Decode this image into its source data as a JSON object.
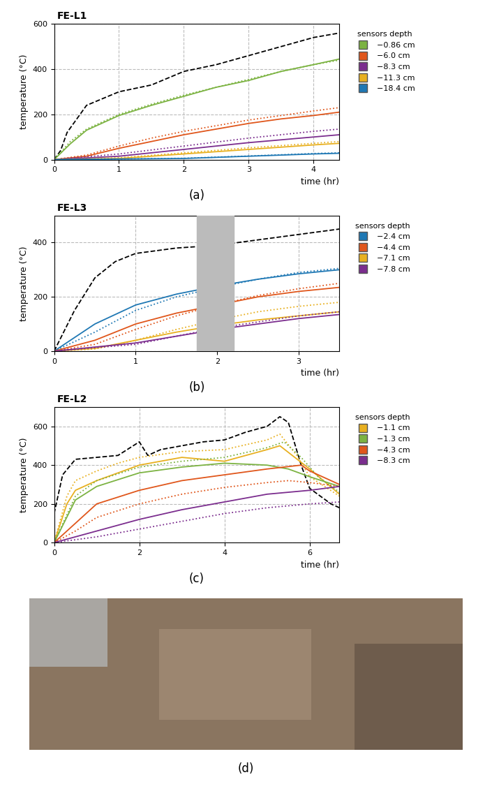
{
  "chart_data": [
    {
      "type": "line",
      "title": "FE-L1",
      "panel_label": "(a)",
      "x_label": "time (hr)",
      "y_label": "temperature (°C)",
      "xlim": [
        0,
        4.4
      ],
      "xticks": [
        0,
        1,
        2,
        3,
        4
      ],
      "ylim": [
        0,
        600
      ],
      "yticks": [
        0,
        200,
        400,
        600
      ],
      "grid": true,
      "legend": "upper left",
      "legend_title": "sensors depth",
      "series": [
        {
          "color": "#000000",
          "line_style": "dashed",
          "x": [
            0,
            0.1,
            0.2,
            0.5,
            1,
            1.5,
            2,
            2.5,
            3,
            3.5,
            4,
            4.4
          ],
          "values": [
            0,
            40,
            120,
            240,
            300,
            330,
            390,
            420,
            460,
            500,
            540,
            560
          ]
        },
        {
          "name": "−0.86 cm",
          "color": "#7cb342",
          "line_style": "solid",
          "x": [
            0,
            0.25,
            0.5,
            1,
            1.5,
            2,
            2.5,
            3,
            3.5,
            4,
            4.4
          ],
          "values": [
            0,
            70,
            130,
            195,
            240,
            280,
            320,
            350,
            390,
            420,
            445
          ]
        },
        {
          "color": "#7cb342",
          "line_style": "dotted",
          "x": [
            0,
            0.25,
            0.5,
            1,
            1.5,
            2,
            2.5,
            3,
            3.5,
            4,
            4.4
          ],
          "values": [
            0,
            80,
            135,
            200,
            245,
            285,
            320,
            355,
            390,
            420,
            440
          ]
        },
        {
          "name": "−6.0 cm",
          "color": "#e0561b",
          "line_style": "solid",
          "x": [
            0,
            0.5,
            1,
            1.5,
            2,
            2.5,
            3,
            3.5,
            4,
            4.4
          ],
          "values": [
            0,
            15,
            50,
            80,
            110,
            135,
            160,
            180,
            195,
            210
          ]
        },
        {
          "color": "#e0561b",
          "line_style": "dotted",
          "x": [
            0,
            0.5,
            1,
            1.5,
            2,
            2.5,
            3,
            3.5,
            4,
            4.4
          ],
          "values": [
            0,
            20,
            60,
            95,
            125,
            150,
            175,
            195,
            215,
            230
          ]
        },
        {
          "name": "−8.3 cm",
          "color": "#7b2d8e",
          "line_style": "solid",
          "x": [
            0,
            1,
            2,
            3,
            4,
            4.4
          ],
          "values": [
            0,
            15,
            45,
            75,
            100,
            110
          ]
        },
        {
          "color": "#7b2d8e",
          "line_style": "dotted",
          "x": [
            0,
            1,
            2,
            3,
            4,
            4.4
          ],
          "values": [
            0,
            25,
            60,
            95,
            125,
            135
          ]
        },
        {
          "name": "−11.3 cm",
          "color": "#e8b020",
          "line_style": "solid",
          "x": [
            0,
            1,
            2,
            3,
            4,
            4.4
          ],
          "values": [
            0,
            5,
            25,
            45,
            65,
            72
          ]
        },
        {
          "color": "#e8b020",
          "line_style": "dotted",
          "x": [
            0,
            1,
            2,
            3,
            4,
            4.4
          ],
          "values": [
            0,
            8,
            30,
            52,
            72,
            80
          ]
        },
        {
          "name": "−18.4 cm",
          "color": "#1f78b4",
          "line_style": "solid",
          "x": [
            0,
            2,
            3,
            4,
            4.4
          ],
          "values": [
            0,
            5,
            15,
            25,
            28
          ]
        },
        {
          "color": "#1f78b4",
          "line_style": "dotted",
          "x": [
            0,
            2,
            3,
            4,
            4.4
          ],
          "values": [
            0,
            6,
            16,
            27,
            30
          ]
        }
      ]
    },
    {
      "type": "line",
      "title": "FE-L3",
      "panel_label": "(b)",
      "x_label": "time (hr)",
      "y_label": "temperature (°C)",
      "xlim": [
        0,
        3.5
      ],
      "xticks": [
        0,
        1,
        2,
        3
      ],
      "ylim": [
        0,
        500
      ],
      "yticks": [
        0,
        200,
        400
      ],
      "grid": true,
      "shaded_interval": [
        1.75,
        2.2
      ],
      "legend": "upper left",
      "legend_title": "sensors depth",
      "series": [
        {
          "color": "#000000",
          "line_style": "dashed",
          "x": [
            0,
            0.25,
            0.5,
            0.75,
            1,
            1.5,
            2,
            2.5,
            3,
            3.5
          ],
          "values": [
            0,
            150,
            270,
            330,
            360,
            380,
            390,
            410,
            430,
            450
          ]
        },
        {
          "name": "−2.4 cm",
          "color": "#1f78b4",
          "line_style": "solid",
          "x": [
            0,
            0.5,
            1,
            1.5,
            2,
            2.5,
            3,
            3.5
          ],
          "values": [
            0,
            100,
            170,
            210,
            240,
            265,
            285,
            300
          ]
        },
        {
          "color": "#1f78b4",
          "line_style": "dotted",
          "x": [
            0,
            0.5,
            1,
            1.5,
            2,
            2.5,
            3,
            3.5
          ],
          "values": [
            0,
            70,
            150,
            200,
            235,
            265,
            290,
            305
          ]
        },
        {
          "name": "−4.4 cm",
          "color": "#e0561b",
          "line_style": "solid",
          "x": [
            0,
            0.5,
            1,
            1.5,
            2,
            2.5,
            3,
            3.5
          ],
          "values": [
            0,
            40,
            100,
            140,
            170,
            200,
            220,
            235
          ]
        },
        {
          "color": "#e0561b",
          "line_style": "dotted",
          "x": [
            0,
            0.5,
            1,
            1.5,
            2,
            2.5,
            3,
            3.5
          ],
          "values": [
            0,
            25,
            80,
            130,
            170,
            205,
            230,
            250
          ]
        },
        {
          "name": "−7.1 cm",
          "color": "#e8b020",
          "line_style": "solid",
          "x": [
            0,
            0.5,
            1,
            1.5,
            2,
            2.5,
            3,
            3.5
          ],
          "values": [
            0,
            10,
            40,
            70,
            95,
            115,
            130,
            145
          ]
        },
        {
          "color": "#e8b020",
          "line_style": "dotted",
          "x": [
            0,
            0.5,
            1,
            1.5,
            2,
            2.5,
            3,
            3.5
          ],
          "values": [
            0,
            8,
            40,
            80,
            115,
            145,
            165,
            180
          ]
        },
        {
          "name": "−7.8 cm",
          "color": "#7b2d8e",
          "line_style": "solid",
          "x": [
            0,
            1,
            2,
            3,
            3.5
          ],
          "values": [
            0,
            30,
            80,
            120,
            135
          ]
        },
        {
          "color": "#7b2d8e",
          "line_style": "dotted",
          "x": [
            0,
            1,
            2,
            3,
            3.5
          ],
          "values": [
            0,
            25,
            85,
            130,
            145
          ]
        }
      ]
    },
    {
      "type": "line",
      "title": "FE-L2",
      "panel_label": "(c)",
      "x_label": "time (hr)",
      "y_label": "temperature (°C)",
      "xlim": [
        0,
        6.7
      ],
      "xticks": [
        0,
        2,
        4,
        6
      ],
      "ylim": [
        0,
        700
      ],
      "yticks": [
        0,
        200,
        400,
        600
      ],
      "grid": true,
      "legend": "upper left",
      "legend_title": "sensors depth",
      "series": [
        {
          "color": "#000000",
          "line_style": "dashed",
          "x": [
            0,
            0.2,
            0.5,
            1,
            1.5,
            2,
            2.2,
            2.5,
            3,
            3.5,
            4,
            4.5,
            5,
            5.3,
            5.5,
            5.8,
            6,
            6.5,
            6.7
          ],
          "values": [
            150,
            350,
            430,
            440,
            450,
            520,
            450,
            480,
            500,
            520,
            530,
            570,
            600,
            650,
            620,
            400,
            280,
            200,
            180
          ]
        },
        {
          "name": "−1.1 cm",
          "color": "#e8b020",
          "line_style": "solid",
          "x": [
            0,
            0.3,
            0.5,
            1,
            1.5,
            2,
            3,
            4,
            5,
            5.3,
            6,
            6.7
          ],
          "values": [
            0,
            200,
            270,
            320,
            360,
            400,
            440,
            420,
            480,
            500,
            380,
            250
          ]
        },
        {
          "color": "#e8b020",
          "line_style": "dotted",
          "x": [
            0,
            0.3,
            0.5,
            1,
            1.5,
            2,
            3,
            4,
            5,
            5.3,
            5.7,
            6,
            6.7
          ],
          "values": [
            0,
            240,
            320,
            370,
            410,
            440,
            470,
            480,
            530,
            560,
            450,
            340,
            240
          ]
        },
        {
          "name": "−1.3 cm",
          "color": "#7cb342",
          "line_style": "solid",
          "x": [
            0,
            0.5,
            1,
            2,
            3,
            4,
            5,
            5.5,
            6,
            6.7
          ],
          "values": [
            0,
            220,
            290,
            360,
            390,
            410,
            400,
            380,
            340,
            290
          ]
        },
        {
          "color": "#7cb342",
          "line_style": "dotted",
          "x": [
            0,
            0.5,
            1,
            2,
            3,
            4,
            5,
            5.4,
            5.8,
            6.2,
            6.7
          ],
          "values": [
            0,
            240,
            320,
            390,
            420,
            440,
            490,
            520,
            440,
            340,
            260
          ]
        },
        {
          "name": "−4.3 cm",
          "color": "#e0561b",
          "line_style": "solid",
          "x": [
            0,
            0.5,
            1,
            2,
            3,
            4,
            5,
            5.8,
            6,
            6.7
          ],
          "values": [
            0,
            100,
            200,
            270,
            320,
            350,
            380,
            400,
            370,
            300
          ]
        },
        {
          "color": "#e0561b",
          "line_style": "dotted",
          "x": [
            0,
            0.5,
            1,
            2,
            3,
            4,
            5,
            5.5,
            6,
            6.7
          ],
          "values": [
            0,
            60,
            130,
            200,
            250,
            285,
            310,
            320,
            310,
            290
          ]
        },
        {
          "name": "−8.3 cm",
          "color": "#7b2d8e",
          "line_style": "solid",
          "x": [
            0,
            1,
            2,
            3,
            4,
            5,
            6,
            6.7
          ],
          "values": [
            0,
            60,
            120,
            170,
            210,
            250,
            270,
            290
          ]
        },
        {
          "color": "#7b2d8e",
          "line_style": "dotted",
          "x": [
            0,
            1,
            2,
            3,
            4,
            5,
            6,
            6.7
          ],
          "values": [
            0,
            30,
            70,
            110,
            150,
            180,
            200,
            210
          ]
        }
      ]
    }
  ],
  "image": {
    "panel_label": "(d)"
  }
}
